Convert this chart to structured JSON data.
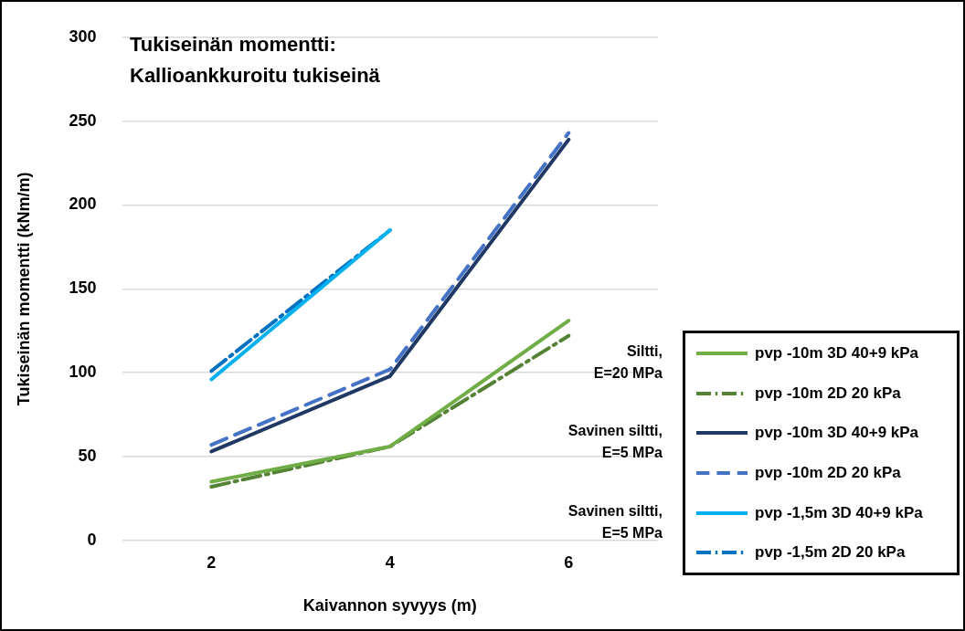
{
  "chart_data": {
    "type": "line",
    "title": "Tukiseinän momentti: Kallioankkuroitu tukiseinä",
    "xlabel": "Kaivannon syvyys (m)",
    "ylabel": "Tukiseinän momentti (kNm/m)",
    "categories": [
      "2",
      "4",
      "6"
    ],
    "series": [
      {
        "name": "pvp -10m 3D 40+9 kPa",
        "color": "#70ad47",
        "line_style": "solid",
        "values": [
          35,
          56,
          131
        ]
      },
      {
        "name": "pvp -10m 2D 20 kPa",
        "color": "#548235",
        "line_style": "dashdot",
        "values": [
          32,
          56,
          122
        ]
      },
      {
        "name": "pvp -10m 3D 40+9 kPa",
        "color": "#203864",
        "line_style": "solid",
        "values": [
          53,
          98,
          239
        ]
      },
      {
        "name": "pvp -10m 2D 20 kPa",
        "color": "#4472c4",
        "line_style": "dashed",
        "values": [
          57,
          102,
          243
        ]
      },
      {
        "name": "pvp -1,5m 3D 40+9 kPa",
        "color": "#00b0f0",
        "line_style": "solid",
        "values": [
          96,
          185,
          null
        ]
      },
      {
        "name": "pvp -1,5m 2D 20 kPa",
        "color": "#0070c0",
        "line_style": "dashdot",
        "values": [
          101,
          185,
          null
        ]
      }
    ],
    "annotations": [
      "Siltti,\nE=20 MPa",
      "Savinen siltti,\nE=5 MPa",
      "Savinen siltti,\nE=5 MPa"
    ],
    "ylim": [
      0,
      300
    ],
    "yticks": [
      0,
      50,
      100,
      150,
      200,
      250,
      300
    ],
    "grid": "y",
    "legend": "right",
    "marker": "none"
  }
}
